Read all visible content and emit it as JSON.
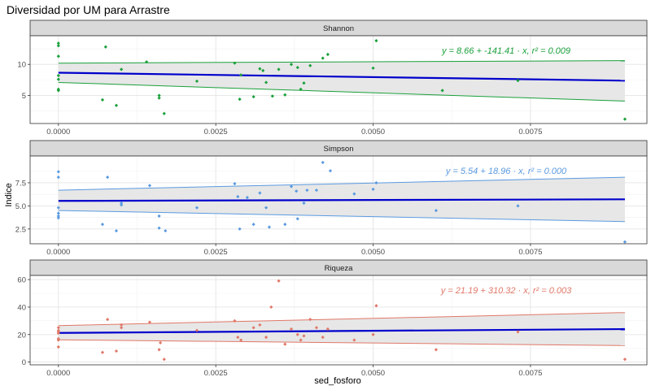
{
  "chart_data": {
    "type": "scatter",
    "title": "Diversidad por UM para Arrastre",
    "xlabel": "sed_fosforo",
    "ylabel": "Indice",
    "x_ticks": [
      "0.0000",
      "0.0025",
      "0.0050",
      "0.0075"
    ],
    "x_tick_values": [
      0,
      0.0025,
      0.005,
      0.0075
    ],
    "xlim": [
      -0.00045,
      0.00935
    ],
    "grid": true,
    "fit_color": "#0000CC",
    "band_color": "#E6E6E6",
    "panels": [
      {
        "name": "Shannon",
        "color": "#1AA03B",
        "ylim": [
          0.5,
          14.6
        ],
        "y_ticks": [
          "5",
          "10"
        ],
        "y_tick_values": [
          5,
          10
        ],
        "equation": "y = 8.66 + -141.41 · x,  r² = 0.009",
        "fit": {
          "intercept": 8.66,
          "slope": -141.41
        },
        "band": {
          "x": [
            0,
            0.009
          ],
          "lower": [
            7.1,
            4.1
          ],
          "upper": [
            10.2,
            10.6
          ]
        },
        "points": [
          [
            0,
            13.4
          ],
          [
            0,
            13
          ],
          [
            0,
            11.3
          ],
          [
            0,
            8.2
          ],
          [
            0,
            7.6
          ],
          [
            0,
            6
          ],
          [
            0,
            5.8
          ],
          [
            0.0007,
            4.3
          ],
          [
            0.00075,
            12.8
          ],
          [
            0.00092,
            3.4
          ],
          [
            0.001,
            9.2
          ],
          [
            0.0014,
            10.4
          ],
          [
            0.0016,
            5
          ],
          [
            0.0016,
            4.6
          ],
          [
            0.00168,
            2.1
          ],
          [
            0.0022,
            7.3
          ],
          [
            0.0028,
            10.2
          ],
          [
            0.00288,
            4.4
          ],
          [
            0.0029,
            8.3
          ],
          [
            0.0031,
            4.8
          ],
          [
            0.0032,
            9.3
          ],
          [
            0.00325,
            9
          ],
          [
            0.0033,
            7.1
          ],
          [
            0.0034,
            4.9
          ],
          [
            0.0035,
            9.2
          ],
          [
            0.0036,
            5.1
          ],
          [
            0.0037,
            10
          ],
          [
            0.0038,
            9.5
          ],
          [
            0.00385,
            6
          ],
          [
            0.0039,
            7
          ],
          [
            0.004,
            9.8
          ],
          [
            0.0042,
            11
          ],
          [
            0.00428,
            11.6
          ],
          [
            0.005,
            9.4
          ],
          [
            0.00505,
            13.8
          ],
          [
            0.0061,
            5.8
          ],
          [
            0.0073,
            7.4
          ],
          [
            0.009,
            1.2
          ]
        ]
      },
      {
        "name": "Simpson",
        "color": "#5A9AE0",
        "ylim": [
          0.9,
          10.4
        ],
        "y_ticks": [
          "2.5",
          "5.0",
          "7.5"
        ],
        "y_tick_values": [
          2.5,
          5,
          7.5
        ],
        "equation": "y = 5.54 + 18.96 · x,  r² = 0.000",
        "fit": {
          "intercept": 5.54,
          "slope": 18.96
        },
        "band": {
          "x": [
            0,
            0.009
          ],
          "lower": [
            4.5,
            3.3
          ],
          "upper": [
            6.7,
            8.1
          ]
        },
        "points": [
          [
            0,
            8.7
          ],
          [
            0,
            8.1
          ],
          [
            0,
            4.8
          ],
          [
            0,
            4.2
          ],
          [
            0,
            3.9
          ],
          [
            0,
            3.7
          ],
          [
            0.0007,
            3
          ],
          [
            0.00078,
            8.1
          ],
          [
            0.00092,
            2.3
          ],
          [
            0.001,
            5.3
          ],
          [
            0.001,
            5.1
          ],
          [
            0.00145,
            7.2
          ],
          [
            0.0016,
            2.6
          ],
          [
            0.0016,
            3.9
          ],
          [
            0.0017,
            2.3
          ],
          [
            0.0022,
            4.8
          ],
          [
            0.0028,
            7.4
          ],
          [
            0.00285,
            6
          ],
          [
            0.00288,
            2.5
          ],
          [
            0.003,
            5.9
          ],
          [
            0.0031,
            3
          ],
          [
            0.0032,
            6.4
          ],
          [
            0.0033,
            4.8
          ],
          [
            0.00335,
            2.7
          ],
          [
            0.0036,
            3
          ],
          [
            0.0037,
            7.1
          ],
          [
            0.00378,
            6.6
          ],
          [
            0.0038,
            3.6
          ],
          [
            0.0039,
            5.3
          ],
          [
            0.00395,
            6.7
          ],
          [
            0.0041,
            6.7
          ],
          [
            0.0042,
            9.7
          ],
          [
            0.00432,
            8.8
          ],
          [
            0.0047,
            6.3
          ],
          [
            0.005,
            6.8
          ],
          [
            0.00505,
            7.5
          ],
          [
            0.006,
            4.5
          ],
          [
            0.0073,
            5
          ],
          [
            0.009,
            1.1
          ]
        ]
      },
      {
        "name": "Riqueza",
        "color": "#E07868",
        "ylim": [
          -2,
          63
        ],
        "y_ticks": [
          "0",
          "20",
          "40",
          "60"
        ],
        "y_tick_values": [
          0,
          20,
          40,
          60
        ],
        "equation": "y = 21.19 + 310.32 · x,  r² = 0.003",
        "fit": {
          "intercept": 21.19,
          "slope": 310.32
        },
        "band": {
          "x": [
            0,
            0.009
          ],
          "lower": [
            16.2,
            12
          ],
          "upper": [
            26.5,
            36
          ]
        },
        "points": [
          [
            0,
            25
          ],
          [
            0,
            23
          ],
          [
            0,
            22
          ],
          [
            0,
            21
          ],
          [
            0,
            17
          ],
          [
            0,
            16
          ],
          [
            0,
            11
          ],
          [
            0.0007,
            7
          ],
          [
            0.00078,
            31
          ],
          [
            0.00092,
            8
          ],
          [
            0.001,
            27
          ],
          [
            0.001,
            25
          ],
          [
            0.00145,
            29
          ],
          [
            0.0016,
            9
          ],
          [
            0.00162,
            14
          ],
          [
            0.00168,
            2
          ],
          [
            0.0022,
            23
          ],
          [
            0.0028,
            30
          ],
          [
            0.00285,
            18
          ],
          [
            0.0029,
            16
          ],
          [
            0.0031,
            25
          ],
          [
            0.0032,
            27
          ],
          [
            0.0033,
            18
          ],
          [
            0.00338,
            40
          ],
          [
            0.0035,
            59
          ],
          [
            0.0036,
            13
          ],
          [
            0.0037,
            24
          ],
          [
            0.0038,
            20
          ],
          [
            0.00385,
            16
          ],
          [
            0.0039,
            19
          ],
          [
            0.004,
            31
          ],
          [
            0.0041,
            25
          ],
          [
            0.0042,
            18
          ],
          [
            0.00428,
            24
          ],
          [
            0.0047,
            16
          ],
          [
            0.005,
            20
          ],
          [
            0.00505,
            41
          ],
          [
            0.006,
            9
          ],
          [
            0.0073,
            22
          ],
          [
            0.009,
            2
          ]
        ]
      }
    ]
  }
}
